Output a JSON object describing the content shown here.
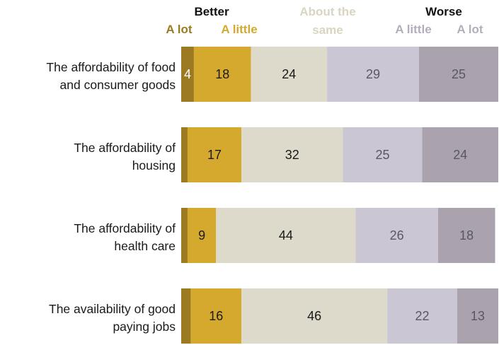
{
  "chart_data": {
    "type": "bar",
    "stacked": true,
    "orientation": "horizontal",
    "header": {
      "better": "Better",
      "about_same_line1": "About the",
      "about_same_line2": "same",
      "worse": "Worse"
    },
    "series": [
      {
        "name": "A lot",
        "group": "Better",
        "color": "#9c7a22",
        "values": [
          4,
          2,
          2,
          3
        ]
      },
      {
        "name": "A little",
        "group": "Better",
        "color": "#d4a92e",
        "values": [
          18,
          17,
          9,
          16
        ]
      },
      {
        "name": "About the same",
        "group": "",
        "color": "#dddacb",
        "values": [
          24,
          32,
          44,
          46
        ]
      },
      {
        "name": "A little",
        "group": "Worse",
        "color": "#cbc6d3",
        "values": [
          29,
          25,
          26,
          22
        ]
      },
      {
        "name": "A lot",
        "group": "Worse",
        "color": "#aaa3ae",
        "values": [
          25,
          24,
          18,
          13
        ]
      }
    ],
    "value_labels": [
      [
        "4",
        "18",
        "24",
        "29",
        "25"
      ],
      [
        "",
        "17",
        "32",
        "25",
        "24"
      ],
      [
        "",
        "9",
        "44",
        "26",
        "18"
      ],
      [
        "",
        "16",
        "46",
        "22",
        "13"
      ]
    ],
    "categories": [
      [
        "The affordability of food",
        "and consumer goods"
      ],
      [
        "The affordability of",
        "housing"
      ],
      [
        "The affordability of",
        "health care"
      ],
      [
        "The availability of good",
        "paying jobs"
      ]
    ],
    "colors": {
      "better_lot": "#9c7a22",
      "better_little": "#d4a92e",
      "same": "#dddacb",
      "worse_little": "#cbc6d3",
      "worse_lot": "#aaa3ae",
      "same_header_text": "#d9d5c2",
      "worse_sub_text": "#b4aebb"
    },
    "xlim": [
      0,
      100
    ]
  }
}
